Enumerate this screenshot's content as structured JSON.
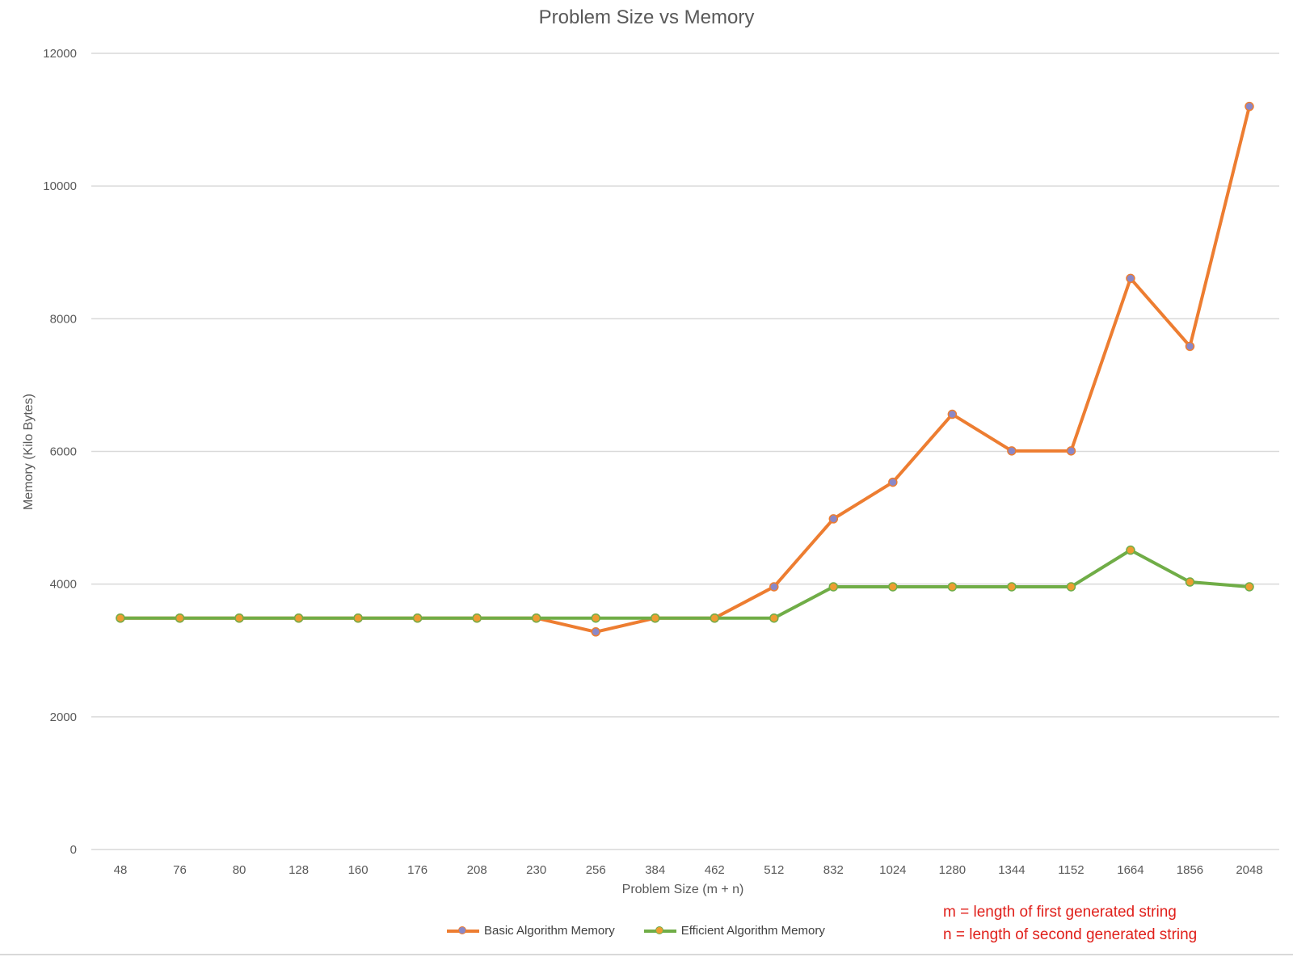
{
  "chart_data": {
    "type": "line",
    "title": "Problem Size vs Memory",
    "xlabel": "Problem Size (m + n)",
    "ylabel": "Memory (Kilo Bytes)",
    "ylim": [
      0,
      12000
    ],
    "yticks": [
      0,
      2000,
      4000,
      6000,
      8000,
      10000,
      12000
    ],
    "grid": true,
    "legend_position": "bottom",
    "categories": [
      "48",
      "76",
      "80",
      "128",
      "160",
      "176",
      "208",
      "230",
      "256",
      "384",
      "462",
      "512",
      "832",
      "1024",
      "1280",
      "1344",
      "1152",
      "1664",
      "1856",
      "2048"
    ],
    "series": [
      {
        "name": "Basic Algorithm Memory",
        "color": "#ed7d31",
        "marker_color": "#8a88c8",
        "values": [
          3488,
          3488,
          3488,
          3488,
          3488,
          3488,
          3488,
          3488,
          3280,
          3488,
          3488,
          3960,
          4984,
          5536,
          6560,
          6008,
          6008,
          8608,
          7584,
          11200
        ]
      },
      {
        "name": "Efficient Algorithm Memory",
        "color": "#70ad47",
        "marker_color": "#ed9d31",
        "values": [
          3488,
          3488,
          3488,
          3488,
          3488,
          3488,
          3488,
          3488,
          3488,
          3488,
          3488,
          3488,
          3960,
          3960,
          3960,
          3960,
          3960,
          4512,
          4032,
          3960
        ]
      }
    ],
    "annotations": [
      "m = length of first generated string",
      "n = length of second generated string"
    ]
  }
}
